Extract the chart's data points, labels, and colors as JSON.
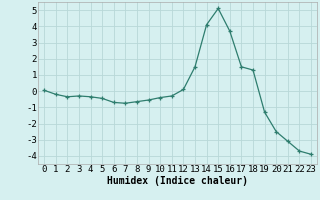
{
  "x": [
    0,
    1,
    2,
    3,
    4,
    5,
    6,
    7,
    8,
    9,
    10,
    11,
    12,
    13,
    14,
    15,
    16,
    17,
    18,
    19,
    20,
    21,
    22,
    23
  ],
  "y": [
    0.05,
    -0.2,
    -0.35,
    -0.3,
    -0.35,
    -0.45,
    -0.7,
    -0.75,
    -0.65,
    -0.55,
    -0.4,
    -0.3,
    0.1,
    1.5,
    4.1,
    5.1,
    3.7,
    1.5,
    1.3,
    -1.3,
    -2.5,
    -3.1,
    -3.7,
    -3.9
  ],
  "xlabel": "Humidex (Indice chaleur)",
  "xlim": [
    -0.5,
    23.5
  ],
  "ylim": [
    -4.5,
    5.5
  ],
  "yticks": [
    -4,
    -3,
    -2,
    -1,
    0,
    1,
    2,
    3,
    4,
    5
  ],
  "xticks": [
    0,
    1,
    2,
    3,
    4,
    5,
    6,
    7,
    8,
    9,
    10,
    11,
    12,
    13,
    14,
    15,
    16,
    17,
    18,
    19,
    20,
    21,
    22,
    23
  ],
  "line_color": "#2e7d6e",
  "marker": "+",
  "bg_color": "#d6f0f0",
  "grid_color": "#b8d8d8",
  "xlabel_fontsize": 7,
  "tick_fontsize": 6.5
}
